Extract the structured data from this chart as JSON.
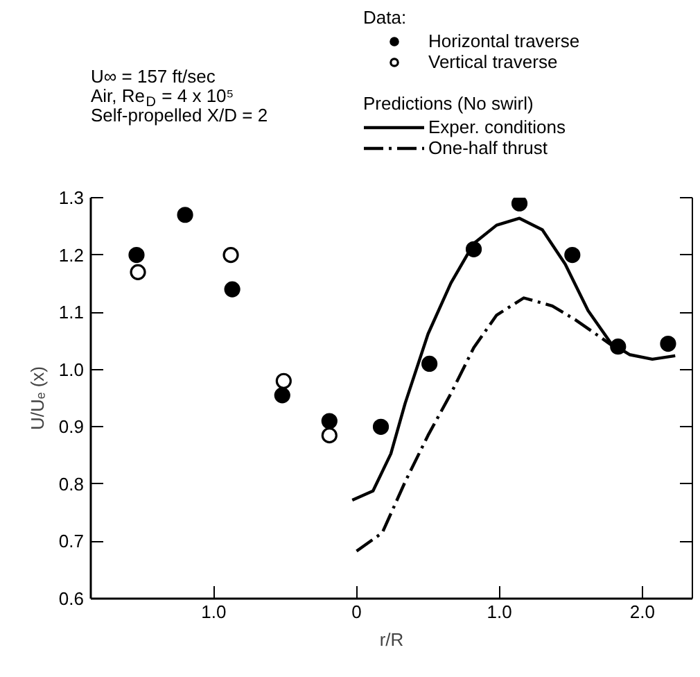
{
  "chart_data": {
    "type": "scatter",
    "xlabel": "r/R",
    "ylabel": "U/Uₑ (x)",
    "xlim": [
      -1.86,
      2.35
    ],
    "ylim": [
      0.6,
      1.3
    ],
    "xticks": [
      {
        "value": -1.0,
        "label": "1.0"
      },
      0,
      {
        "value": 1.0,
        "label": "1.0"
      },
      {
        "value": 2.0,
        "label": "2.0"
      }
    ],
    "yticks": [
      0.6,
      0.7,
      0.8,
      0.9,
      {
        "value": 1.0,
        "label": "1.0"
      },
      1.1,
      1.2,
      1.3
    ],
    "grid": false,
    "legend": "top right",
    "legend_title": "Data:",
    "annotations": [
      "U∞ = 157 ft/sec",
      "Air, Re$_{D}$ = 4 x 10⁵",
      "Self-propelled X/D = 2",
      "Predictions (No swirl)"
    ],
    "series": [
      {
        "name": "Horizontal traverse",
        "marker": "circle",
        "color": "#000000",
        "x": [
          -1.54,
          -1.2,
          -0.87,
          -0.52,
          -0.19,
          0.17,
          0.51,
          0.82,
          1.14,
          1.51,
          1.83,
          2.18
        ],
        "values": [
          1.2,
          1.27,
          1.14,
          0.955,
          0.91,
          0.9,
          1.01,
          1.21,
          1.29,
          1.2,
          1.04,
          1.045
        ]
      },
      {
        "name": "Vertical traverse",
        "marker": "circle",
        "color": "#000000",
        "x": [
          -1.53,
          -0.88,
          -0.51,
          -0.19
        ],
        "values": [
          1.17,
          1.2,
          0.98,
          0.885
        ]
      },
      {
        "name": "Exper. conditions",
        "type": "line",
        "line_style": "solid",
        "color": "#000000",
        "x": [
          -0.03,
          0.115,
          0.24,
          0.34,
          0.5,
          0.66,
          0.82,
          0.98,
          1.14,
          1.3,
          1.46,
          1.62,
          1.78,
          1.91,
          2.07,
          2.23
        ],
        "values": [
          0.772,
          0.788,
          0.853,
          0.941,
          1.062,
          1.151,
          1.22,
          1.252,
          1.264,
          1.244,
          1.184,
          1.103,
          1.046,
          1.026,
          1.018,
          1.024
        ]
      },
      {
        "name": "One-half thrust",
        "type": "line",
        "line_style": "dashdot",
        "color": "#000000",
        "x": [
          0.0,
          0.18,
          0.34,
          0.5,
          0.66,
          0.82,
          0.98,
          1.17,
          1.37,
          1.53,
          1.72,
          1.81
        ],
        "values": [
          0.683,
          0.715,
          0.804,
          0.885,
          0.958,
          1.038,
          1.095,
          1.125,
          1.111,
          1.087,
          1.054,
          1.038
        ]
      }
    ]
  }
}
